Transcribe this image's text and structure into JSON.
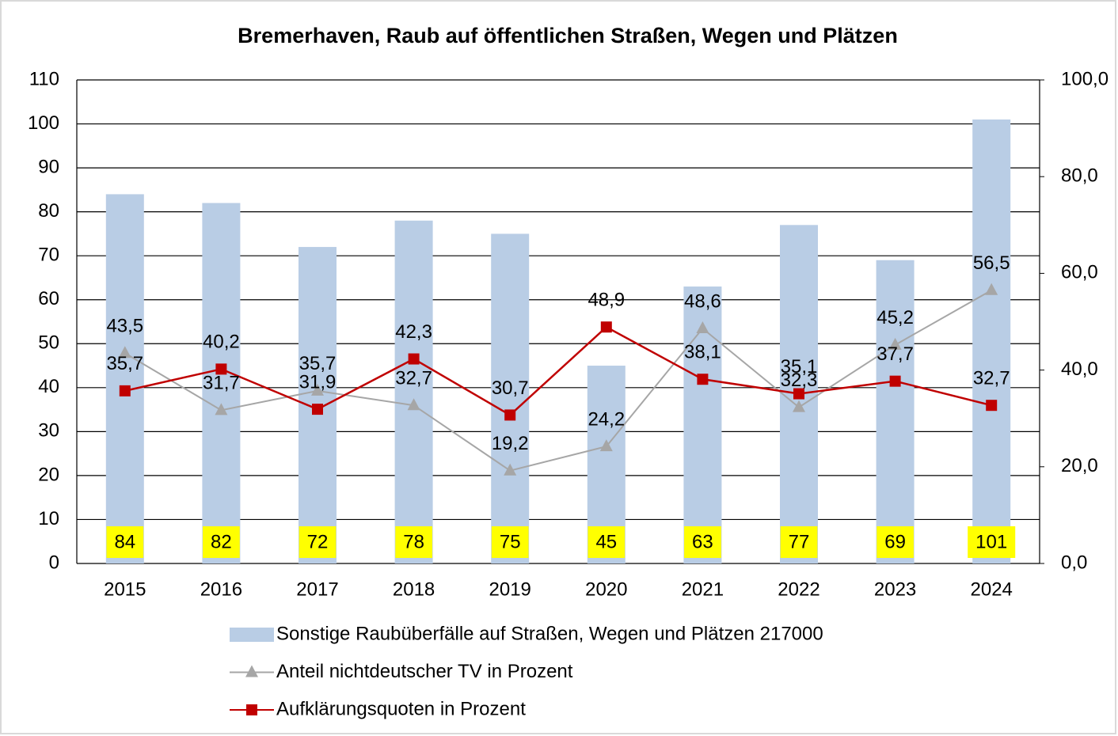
{
  "chart_data": {
    "type": "bar",
    "title": "Bremerhaven, Raub auf öffentlichen Straßen, Wegen und Plätzen",
    "categories": [
      "2015",
      "2016",
      "2017",
      "2018",
      "2019",
      "2020",
      "2021",
      "2022",
      "2023",
      "2024"
    ],
    "series": [
      {
        "name": "Sonstige Raubüberfälle auf Straßen, Wegen und Plätzen 217000",
        "type": "bar",
        "color": "#b9cde5",
        "label_color": "#ffff00",
        "values": [
          84,
          82,
          72,
          78,
          75,
          45,
          63,
          77,
          69,
          101
        ]
      },
      {
        "name": "Anteil nichtdeutscher TV in Prozent",
        "type": "line",
        "marker": "triangle",
        "color": "#a6a6a6",
        "axis": "y2",
        "values": [
          43.5,
          31.7,
          35.7,
          32.7,
          19.2,
          24.2,
          48.6,
          32.3,
          45.2,
          56.5
        ],
        "value_labels": [
          "43,5",
          "31,7",
          "35,7",
          "32,7",
          "19,2",
          "24,2",
          "48,6",
          "32,3",
          "45,2",
          "56,5"
        ]
      },
      {
        "name": "Aufklärungsquoten in Prozent",
        "type": "line",
        "marker": "square",
        "color": "#c00000",
        "axis": "y2",
        "values": [
          35.7,
          40.2,
          31.9,
          42.3,
          30.7,
          48.9,
          38.1,
          35.1,
          37.7,
          32.7
        ],
        "value_labels": [
          "35,7",
          "40,2",
          "31,9",
          "42,3",
          "30,7",
          "48,9",
          "38,1",
          "35,1",
          "37,7",
          "32,7"
        ]
      }
    ],
    "ylim": [
      0,
      110
    ],
    "yticks": [
      0,
      10,
      20,
      30,
      40,
      50,
      60,
      70,
      80,
      90,
      100,
      110
    ],
    "y2lim": [
      0,
      100
    ],
    "y2ticks": [
      {
        "value": 0,
        "label": "0,0"
      },
      {
        "value": 20,
        "label": "20,0"
      },
      {
        "value": 40,
        "label": "40,0"
      },
      {
        "value": 60,
        "label": "60,0"
      },
      {
        "value": 80,
        "label": "80,0"
      },
      {
        "value": 100,
        "label": "100,0"
      }
    ],
    "grid": true,
    "legend": "bottom"
  }
}
